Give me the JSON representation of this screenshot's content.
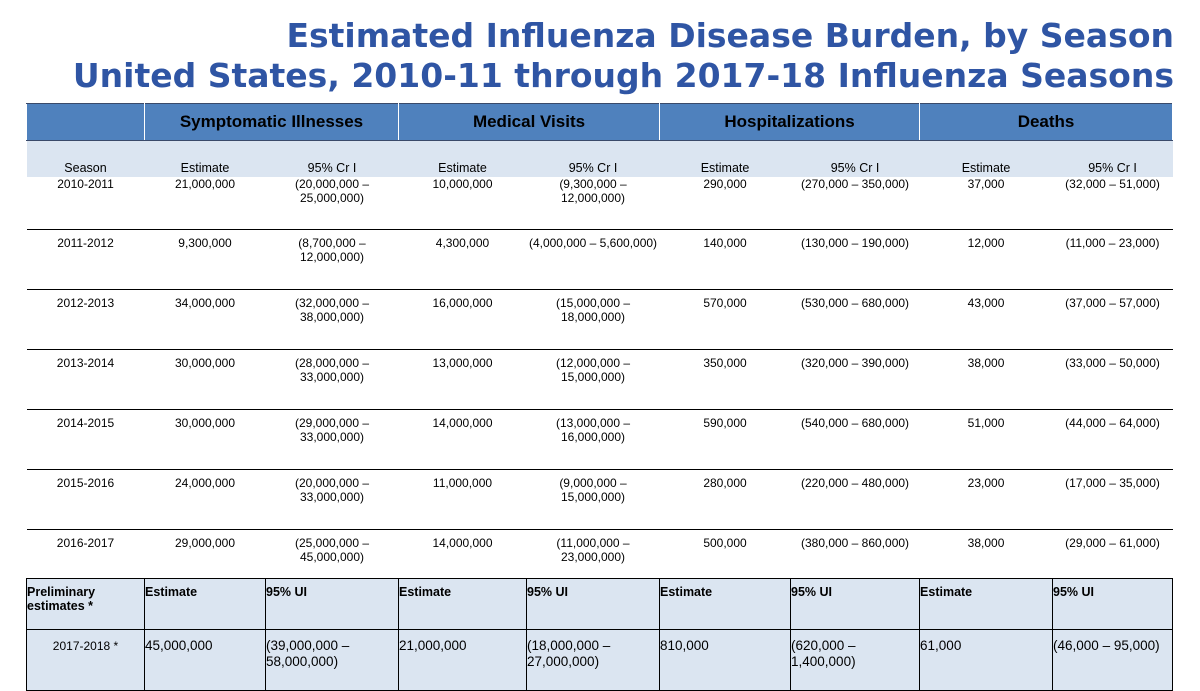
{
  "title": {
    "line1": "Estimated Influenza Disease Burden, by Season",
    "line2": "United States, 2010-11 through 2017-18 Influenza Seasons"
  },
  "groups": {
    "illnesses": "Symptomatic Illnesses",
    "visits": "Medical Visits",
    "hospitalizations": "Hospitalizations",
    "deaths": "Deaths"
  },
  "subheaders": {
    "season": "Season",
    "estimate": "Estimate",
    "interval": "95% Cr I"
  },
  "rows": [
    {
      "season": "2010-2011",
      "ill_est": "21,000,000",
      "ill_ci": "(20,000,000 – 25,000,000)",
      "med_est": "10,000,000",
      "med_ci": "(9,300,000 – 12,000,000)",
      "hosp_est": "290,000",
      "hosp_ci": "(270,000 – 350,000)",
      "death_est": "37,000",
      "death_ci": "(32,000 – 51,000)"
    },
    {
      "season": "2011-2012",
      "ill_est": "9,300,000",
      "ill_ci": "(8,700,000 – 12,000,000)",
      "med_est": "4,300,000",
      "med_ci": "(4,000,000 – 5,600,000)",
      "hosp_est": "140,000",
      "hosp_ci": "(130,000 – 190,000)",
      "death_est": "12,000",
      "death_ci": "(11,000 – 23,000)"
    },
    {
      "season": "2012-2013",
      "ill_est": "34,000,000",
      "ill_ci": "(32,000,000 – 38,000,000)",
      "med_est": "16,000,000",
      "med_ci": "(15,000,000 – 18,000,000)",
      "hosp_est": "570,000",
      "hosp_ci": "(530,000 – 680,000)",
      "death_est": "43,000",
      "death_ci": "(37,000 – 57,000)"
    },
    {
      "season": "2013-2014",
      "ill_est": "30,000,000",
      "ill_ci": "(28,000,000 – 33,000,000)",
      "med_est": "13,000,000",
      "med_ci": "(12,000,000 – 15,000,000)",
      "hosp_est": "350,000",
      "hosp_ci": "(320,000 – 390,000)",
      "death_est": "38,000",
      "death_ci": "(33,000 – 50,000)"
    },
    {
      "season": "2014-2015",
      "ill_est": "30,000,000",
      "ill_ci": "(29,000,000 – 33,000,000)",
      "med_est": "14,000,000",
      "med_ci": "(13,000,000 – 16,000,000)",
      "hosp_est": "590,000",
      "hosp_ci": "(540,000 – 680,000)",
      "death_est": "51,000",
      "death_ci": "(44,000 – 64,000)"
    },
    {
      "season": "2015-2016",
      "ill_est": "24,000,000",
      "ill_ci": "(20,000,000 – 33,000,000)",
      "med_est": "11,000,000",
      "med_ci": "(9,000,000 – 15,000,000)",
      "hosp_est": "280,000",
      "hosp_ci": "(220,000 – 480,000)",
      "death_est": "23,000",
      "death_ci": "(17,000 – 35,000)"
    },
    {
      "season": "2016-2017",
      "ill_est": "29,000,000",
      "ill_ci": "(25,000,000 – 45,000,000)",
      "med_est": "14,000,000",
      "med_ci": "(11,000,000 – 23,000,000)",
      "hosp_est": "500,000",
      "hosp_ci": "(380,000 – 860,000)",
      "death_est": "38,000",
      "death_ci": "(29,000 – 61,000)"
    }
  ],
  "preliminary": {
    "label": "Preliminary estimates *",
    "estimate_label": "Estimate",
    "interval_label": "95% UI",
    "row": {
      "season": "2017-2018 *",
      "ill_est": "45,000,000",
      "ill_ci": "(39,000,000 – 58,000,000)",
      "med_est": "21,000,000",
      "med_ci": "(18,000,000 – 27,000,000)",
      "hosp_est": "810,000",
      "hosp_ci": "(620,000 – 1,400,000)",
      "death_est": "61,000",
      "death_ci": "(46,000 – 95,000)"
    }
  },
  "colors": {
    "title": "#2f55a4",
    "header_fill": "#4f81bd",
    "subheader_fill": "#dbe5f1"
  }
}
